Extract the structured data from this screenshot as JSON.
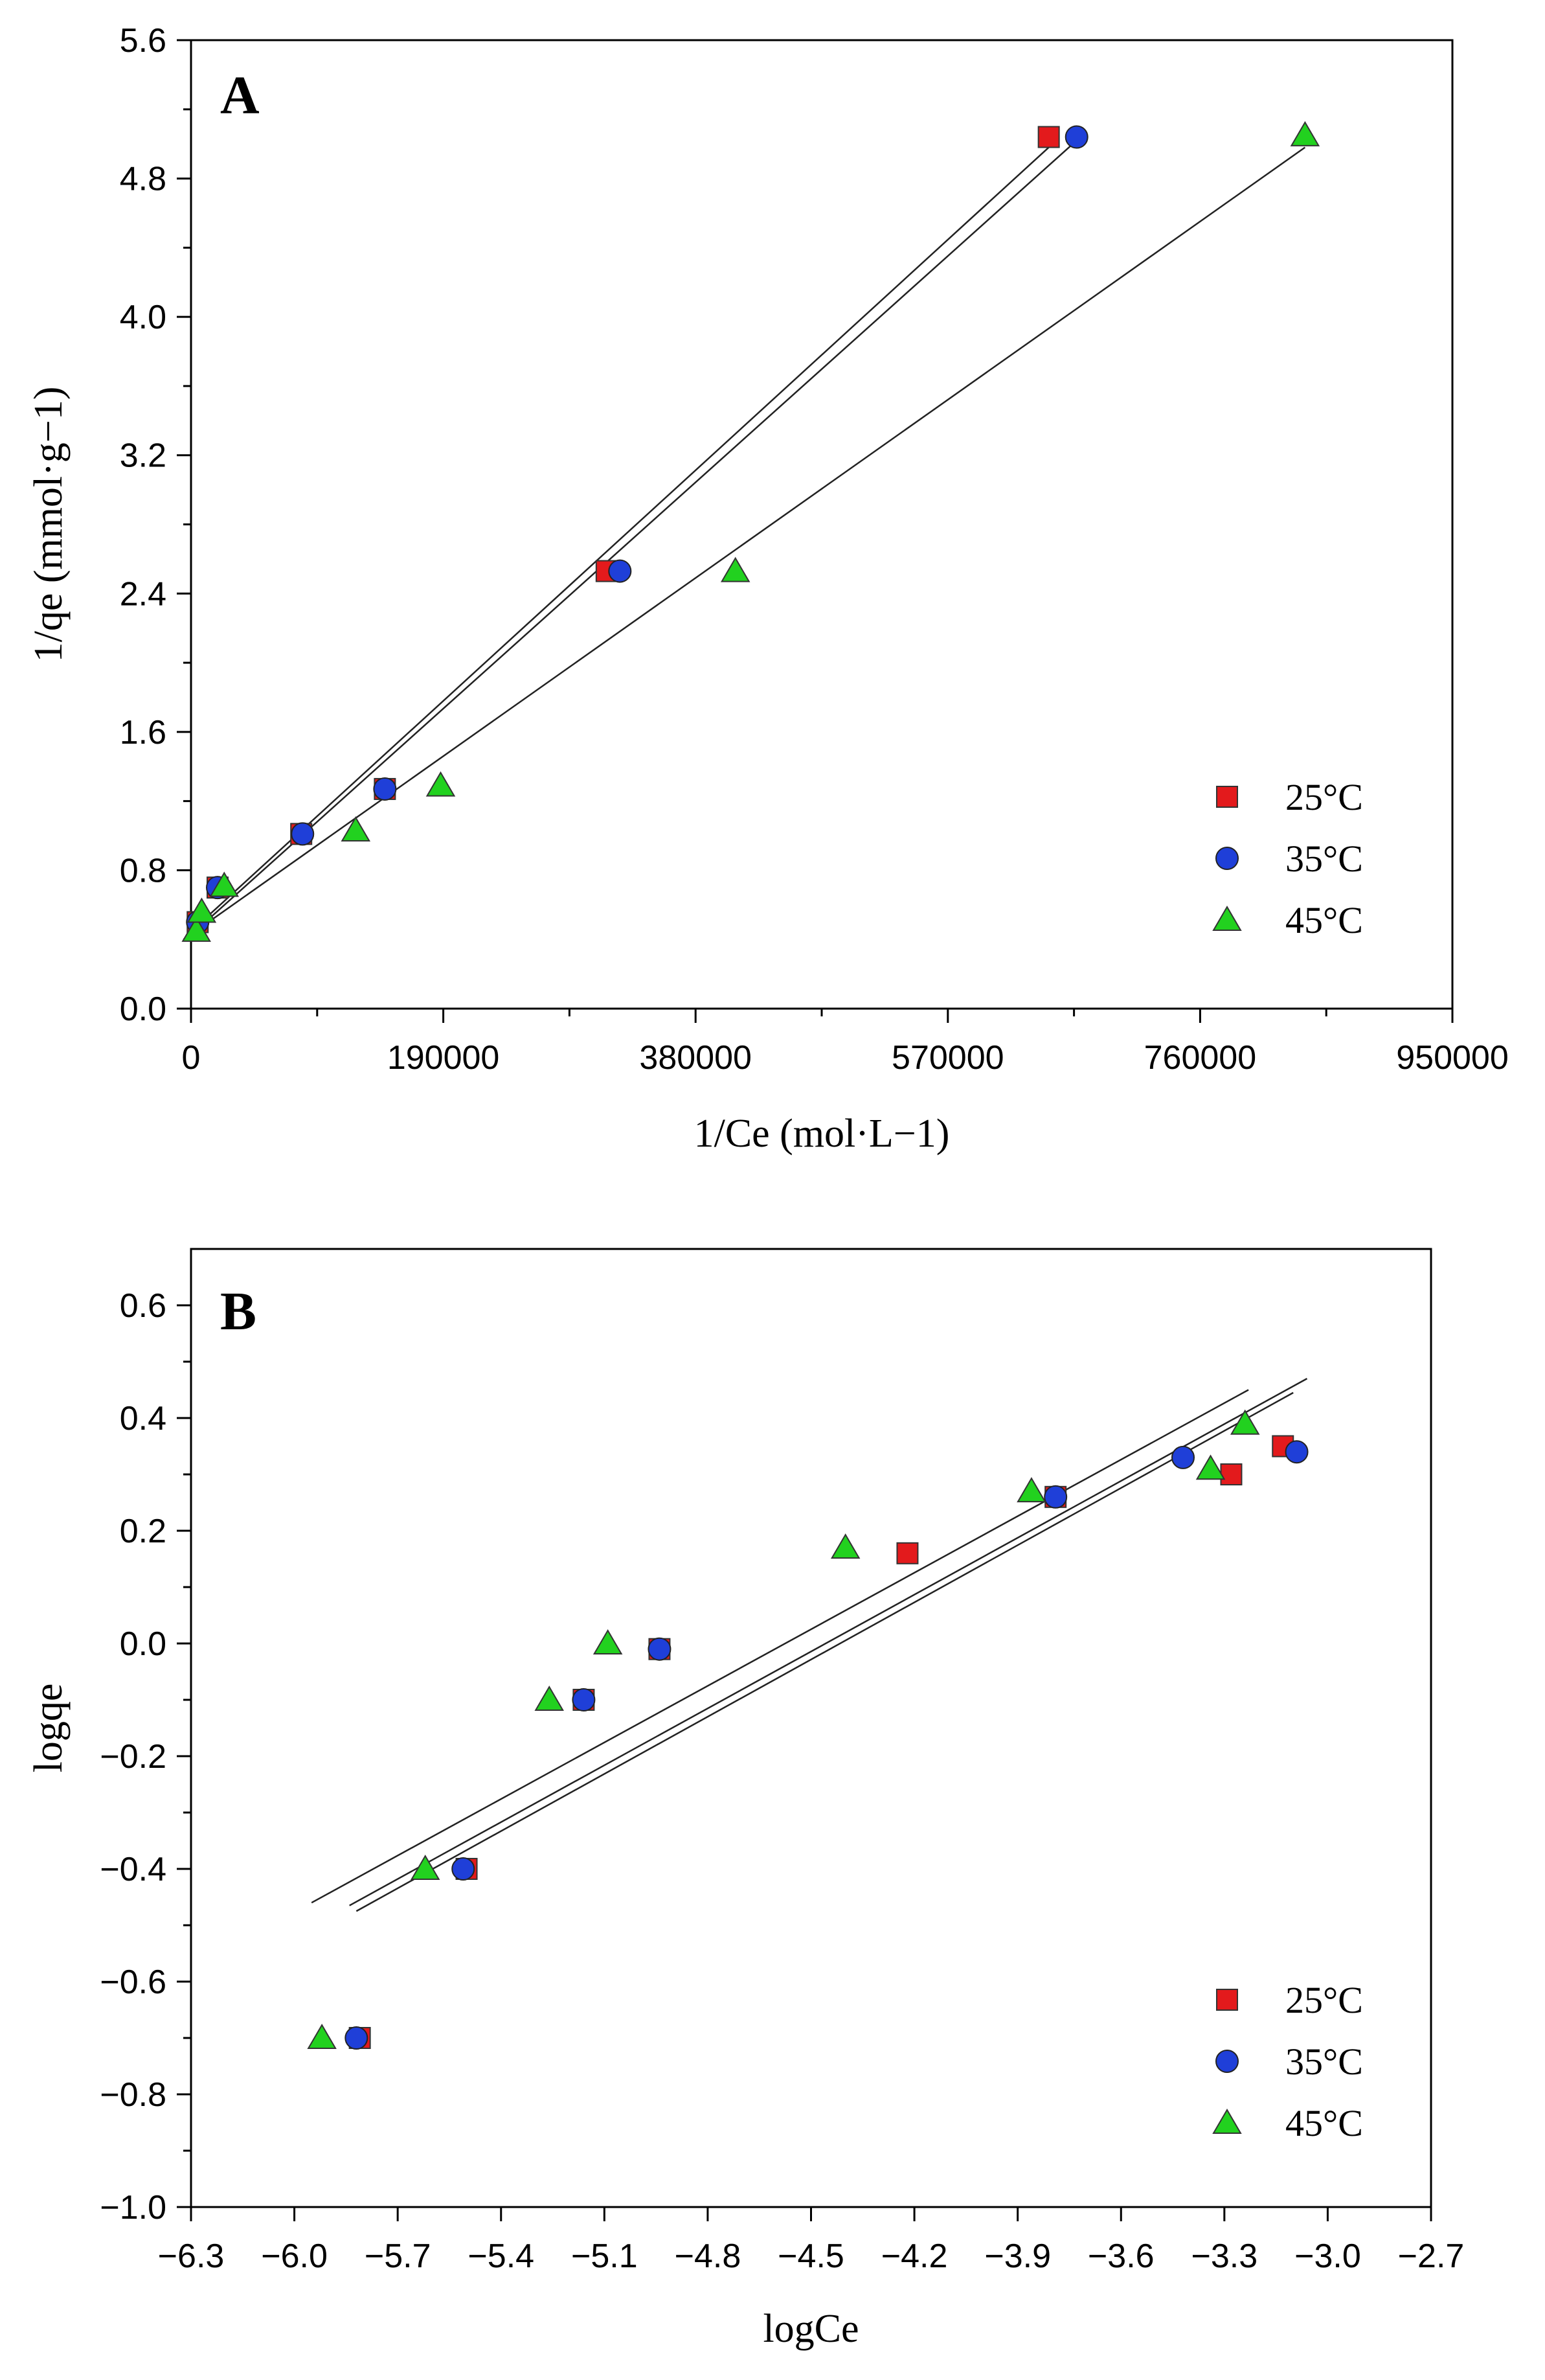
{
  "chart_data": [
    {
      "type": "scatter",
      "panel_label": "A",
      "xlabel": "1/Ce (mol·L−1)",
      "ylabel": "1/qe (mmol·g−1)",
      "xlim": [
        0,
        950000
      ],
      "ylim": [
        0,
        5.6
      ],
      "xticks": [
        0,
        190000,
        380000,
        570000,
        760000,
        950000
      ],
      "xtick_labels": [
        "0",
        "190000",
        "380000",
        "570000",
        "760000",
        "950000"
      ],
      "yticks": [
        0,
        0.8,
        1.6,
        2.4,
        3.2,
        4.0,
        4.8,
        5.6
      ],
      "ytick_labels": [
        "0.0",
        "0.8",
        "1.6",
        "2.4",
        "3.2",
        "4.0",
        "4.8",
        "5.6"
      ],
      "grid": false,
      "legend_position": "bottom-right",
      "series": [
        {
          "name": "25°C",
          "marker": "square",
          "color": "#e31a1c",
          "points": [
            [
              5000,
              0.5
            ],
            [
              20000,
              0.7
            ],
            [
              83000,
              1.01
            ],
            [
              146000,
              1.27
            ],
            [
              313000,
              2.53
            ],
            [
              646000,
              5.04
            ]
          ],
          "fit": [
            [
              2000,
              0.46
            ],
            [
              646000,
              4.98
            ]
          ]
        },
        {
          "name": "35°C",
          "marker": "circle",
          "color": "#1f3fd8",
          "points": [
            [
              5000,
              0.5
            ],
            [
              20000,
              0.7
            ],
            [
              84000,
              1.01
            ],
            [
              146000,
              1.27
            ],
            [
              323000,
              2.53
            ],
            [
              667000,
              5.04
            ]
          ],
          "fit": [
            [
              2000,
              0.44
            ],
            [
              667000,
              5.02
            ]
          ]
        },
        {
          "name": "45°C",
          "marker": "triangle",
          "color": "#22d11f",
          "points": [
            [
              4000,
              0.45
            ],
            [
              8000,
              0.56
            ],
            [
              25000,
              0.71
            ],
            [
              124000,
              1.03
            ],
            [
              188000,
              1.29
            ],
            [
              410000,
              2.53
            ],
            [
              839000,
              5.05
            ]
          ],
          "fit": [
            [
              2000,
              0.44
            ],
            [
              839000,
              4.98
            ]
          ]
        }
      ]
    },
    {
      "type": "scatter",
      "panel_label": "B",
      "xlabel": "logCe",
      "ylabel": "logqe",
      "xlim": [
        -6.3,
        -2.7
      ],
      "ylim": [
        -1.0,
        0.7
      ],
      "xticks": [
        -6.3,
        -6.0,
        -5.7,
        -5.4,
        -5.1,
        -4.8,
        -4.5,
        -4.2,
        -3.9,
        -3.6,
        -3.3,
        -3.0,
        -2.7
      ],
      "xtick_labels": [
        "−6.3",
        "−6.0",
        "−5.7",
        "−5.4",
        "−5.1",
        "−4.8",
        "−4.5",
        "−4.2",
        "−3.9",
        "−3.6",
        "−3.3",
        "−3.0",
        "−2.7"
      ],
      "yticks": [
        -1.0,
        -0.8,
        -0.6,
        -0.4,
        -0.2,
        0.0,
        0.2,
        0.4,
        0.6
      ],
      "ytick_labels": [
        "−1.0",
        "−0.8",
        "−0.6",
        "−0.4",
        "−0.2",
        "0.0",
        "0.2",
        "0.4",
        "0.6"
      ],
      "grid": false,
      "legend_position": "bottom-right",
      "series": [
        {
          "name": "25°C",
          "marker": "square",
          "color": "#e31a1c",
          "points": [
            [
              -5.81,
              -0.7
            ],
            [
              -5.5,
              -0.4
            ],
            [
              -5.16,
              -0.1
            ],
            [
              -4.94,
              -0.01
            ],
            [
              -4.22,
              0.16
            ],
            [
              -3.79,
              0.26
            ],
            [
              -3.28,
              0.3
            ],
            [
              -3.13,
              0.35
            ]
          ],
          "fit": [
            [
              -5.82,
              -0.475
            ],
            [
              -3.1,
              0.445
            ]
          ]
        },
        {
          "name": "35°C",
          "marker": "circle",
          "color": "#1f3fd8",
          "points": [
            [
              -5.82,
              -0.7
            ],
            [
              -5.51,
              -0.4
            ],
            [
              -5.16,
              -0.1
            ],
            [
              -4.94,
              -0.01
            ],
            [
              -3.79,
              0.26
            ],
            [
              -3.42,
              0.33
            ],
            [
              -3.09,
              0.34
            ]
          ],
          "fit": [
            [
              -5.84,
              -0.465
            ],
            [
              -3.06,
              0.47
            ]
          ]
        },
        {
          "name": "45°C",
          "marker": "triangle",
          "color": "#22d11f",
          "points": [
            [
              -5.92,
              -0.7
            ],
            [
              -5.62,
              -0.4
            ],
            [
              -5.26,
              -0.1
            ],
            [
              -5.09,
              0.0
            ],
            [
              -4.4,
              0.17
            ],
            [
              -3.86,
              0.27
            ],
            [
              -3.34,
              0.31
            ],
            [
              -3.24,
              0.39
            ]
          ],
          "fit": [
            [
              -5.95,
              -0.46
            ],
            [
              -3.23,
              0.45
            ]
          ]
        }
      ]
    }
  ]
}
